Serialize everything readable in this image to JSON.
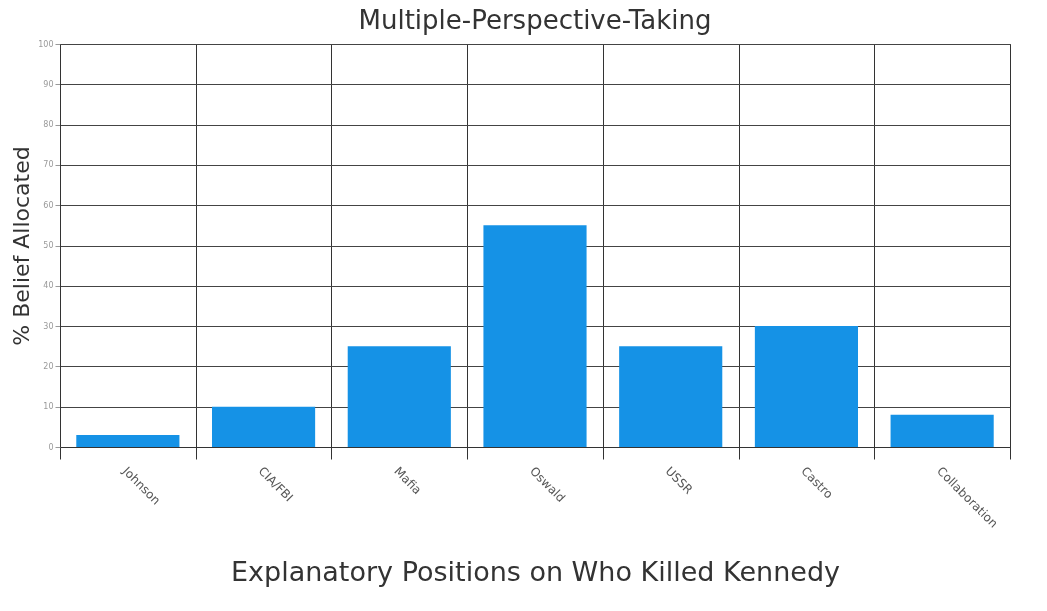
{
  "chart_data": {
    "type": "bar",
    "title": "Multiple-Perspective-Taking",
    "xlabel": "Explanatory Positions on Who Killed Kennedy",
    "ylabel": "% Belief Allocated",
    "categories": [
      "Johnson",
      "CIA/FBI",
      "Mafia",
      "Oswald",
      "USSR",
      "Castro",
      "Collaboration"
    ],
    "values": [
      3,
      10,
      25,
      55,
      25,
      30,
      8
    ],
    "color": "#1592e6",
    "ylim": [
      0,
      100
    ],
    "yticks": [
      0,
      10,
      20,
      30,
      40,
      50,
      60,
      70,
      80,
      90,
      100
    ],
    "grid": true
  }
}
